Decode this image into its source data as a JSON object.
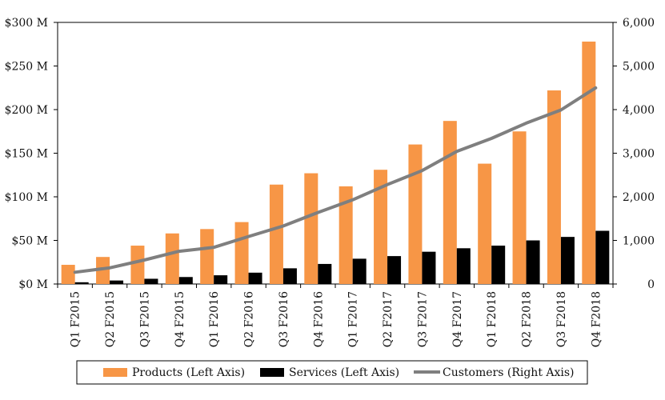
{
  "chart_data": {
    "type": "bar",
    "categories": [
      "Q1 F2015",
      "Q2 F2015",
      "Q3 F2015",
      "Q4 F2015",
      "Q1 F2016",
      "Q2 F2016",
      "Q3 F2016",
      "Q4 F2016",
      "Q1 F2017",
      "Q2 F2017",
      "Q3 F2017",
      "Q4 F2017",
      "Q1 F2018",
      "Q2 F2018",
      "Q3 F2018",
      "Q4 F2018"
    ],
    "series": [
      {
        "name": "Products (Left Axis)",
        "type": "bar",
        "axis": "left",
        "color": "#f79646",
        "values": [
          22,
          31,
          44,
          58,
          63,
          71,
          114,
          127,
          112,
          131,
          160,
          187,
          138,
          175,
          222,
          278
        ]
      },
      {
        "name": "Services (Left Axis)",
        "type": "bar",
        "axis": "left",
        "color": "#000000",
        "values": [
          2,
          4,
          6,
          8,
          10,
          13,
          18,
          23,
          29,
          32,
          37,
          41,
          44,
          50,
          54,
          61
        ]
      },
      {
        "name": "Customers (Right Axis)",
        "type": "line",
        "axis": "right",
        "color": "#7f7f7f",
        "values": [
          270,
          370,
          550,
          750,
          840,
          1090,
          1330,
          1640,
          1930,
          2280,
          2600,
          3040,
          3340,
          3690,
          3990,
          4500
        ]
      }
    ],
    "left_axis": {
      "ylim": [
        0,
        300
      ],
      "ticks": [
        0,
        50,
        100,
        150,
        200,
        250,
        300
      ],
      "tick_labels": [
        "$0 M",
        "$50 M",
        "$100 M",
        "$150 M",
        "$200 M",
        "$250 M",
        "$300 M"
      ]
    },
    "right_axis": {
      "ylim": [
        0,
        6000
      ],
      "ticks": [
        0,
        1000,
        2000,
        3000,
        4000,
        5000,
        6000
      ],
      "tick_labels": [
        "0",
        "1,000",
        "2,000",
        "3,000",
        "4,000",
        "5,000",
        "6,000"
      ]
    },
    "grid": false,
    "legend_position": "bottom"
  }
}
